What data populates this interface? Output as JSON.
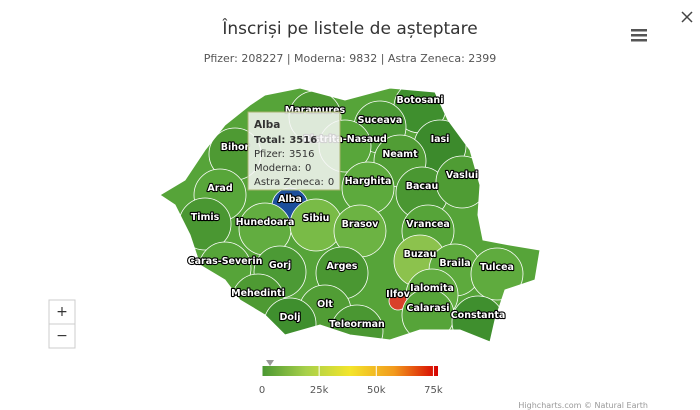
{
  "title": "Înscriși pe listele de așteptare",
  "subtitle": "Pfizer: 208227 | Moderna: 9832 | Astra Zeneca: 2399",
  "map": {
    "counties": [
      {
        "name": "Maramures",
        "color": "#4e9a33"
      },
      {
        "name": "Botosani",
        "color": "#3f8f2e"
      },
      {
        "name": "Suceava",
        "color": "#4c9a35"
      },
      {
        "name": "Bistrita-Nasaud",
        "color": "#58a63a"
      },
      {
        "name": "Bihor",
        "color": "#4e9a33"
      },
      {
        "name": "Iasi",
        "color": "#3c8a2c"
      },
      {
        "name": "Neamt",
        "color": "#519d35"
      },
      {
        "name": "Harghita",
        "color": "#5daa3d"
      },
      {
        "name": "Bacau",
        "color": "#4a9732"
      },
      {
        "name": "Vaslui",
        "color": "#4f9c34"
      },
      {
        "name": "Arad",
        "color": "#58a63a"
      },
      {
        "name": "Alba",
        "color": "#1c4f9c"
      },
      {
        "name": "Timis",
        "color": "#4a9732"
      },
      {
        "name": "Hunedoara",
        "color": "#62ad40"
      },
      {
        "name": "Sibiu",
        "color": "#79bb47"
      },
      {
        "name": "Brasov",
        "color": "#6cb343"
      },
      {
        "name": "Vrancea",
        "color": "#56a439"
      },
      {
        "name": "Caras-Severin",
        "color": "#56a439"
      },
      {
        "name": "Gorj",
        "color": "#4c9a35"
      },
      {
        "name": "Arges",
        "color": "#4a9732"
      },
      {
        "name": "Buzau",
        "color": "#8cc24d"
      },
      {
        "name": "Braila",
        "color": "#5daa3d"
      },
      {
        "name": "Tulcea",
        "color": "#5fab3e"
      },
      {
        "name": "Mehedinti",
        "color": "#4e9a33"
      },
      {
        "name": "Ialomita",
        "color": "#62ad40"
      },
      {
        "name": "Olt",
        "color": "#519d35"
      },
      {
        "name": "Ilfov",
        "color": "#d8402a"
      },
      {
        "name": "Calarasi",
        "color": "#56a439"
      },
      {
        "name": "Dolj",
        "color": "#3f8f2e"
      },
      {
        "name": "Teleorman",
        "color": "#4a9732"
      },
      {
        "name": "Constanta",
        "color": "#3f8f2e"
      }
    ],
    "tooltip": {
      "title": "Alba",
      "rows": [
        {
          "label": "Total:",
          "value": 3516
        },
        {
          "label": "Pfizer:",
          "value": 3516
        },
        {
          "label": "Moderna:",
          "value": 0
        },
        {
          "label": "Astra Zeneca:",
          "value": 0
        }
      ]
    }
  },
  "color_axis": {
    "range": [
      0,
      77000
    ],
    "colors": [
      "#4a9732",
      "#a7d04a",
      "#f3e52b",
      "#f29a1d",
      "#d60000"
    ],
    "ticks": [
      0,
      {
        "value": 25000,
        "label": "25k"
      },
      {
        "value": 50000,
        "label": "50k"
      },
      {
        "value": 75000,
        "label": "75k"
      }
    ]
  },
  "zoom": {
    "in": "+",
    "out": "−"
  },
  "credits": "Highcharts.com © Natural Earth"
}
